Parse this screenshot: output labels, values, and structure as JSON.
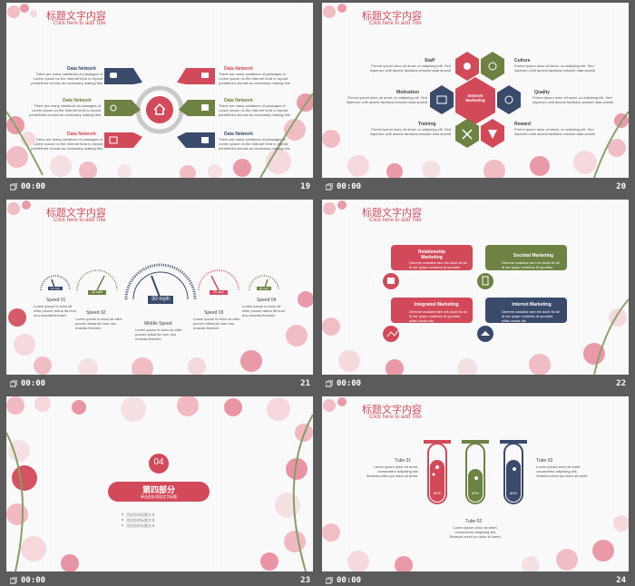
{
  "colors": {
    "red": "#d24a5a",
    "green": "#6d8243",
    "navy": "#3a4a6b",
    "gray": "#c9c9c9",
    "flower": "#e98fa0"
  },
  "slide_title": "标题文字内容",
  "slide_subtitle": "Click here to add Title",
  "time": "00:00",
  "lorem_short": "There are many variations of passages of Lorem Ipsum on the Internet tend to repeat predefined chunks as necessary making this",
  "lorem_pos": "Porem ipsum dolor sit amet, co adipising elit. Sed imperum velit aecest facilisea nesseet data ancedi",
  "lorem_speed": "Lorem ipsum is dolor sit ellier povoer adiua ita num duo enanda finemen",
  "lorem_box": "Demme usstalce tam eis docit tis sit di ise quipo nordidos di opumbe sillist vusda dis",
  "lorem_tube": "Lorem ipsum dolor sit amet, consectetur adipising elis SedeimLorem ips dolor sit amet.",
  "slides": [
    {
      "page": "19",
      "items": [
        "Data Network",
        "Data Network",
        "Data Network",
        "Data Network",
        "Data Network",
        "Data Network"
      ]
    },
    {
      "page": "20",
      "center": "Internet Marketing",
      "items": [
        "Staff",
        "Culture",
        "Motivation",
        "Quality",
        "Training",
        "Reward"
      ]
    },
    {
      "page": "21",
      "speeds": [
        "Speed 01",
        "Speed 02",
        "Middle Speed",
        "Speed 03",
        "Speed 04"
      ],
      "center_value": "30 mph",
      "small_values": [
        "10 mph",
        "20 mph",
        "20 mph",
        "20 mph"
      ]
    },
    {
      "page": "22",
      "boxes": [
        "Relationship Marketing",
        "Societal Marketing",
        "Integrated Marketing",
        "Internet Marketing"
      ]
    },
    {
      "page": "23",
      "number": "04",
      "heading": "第四部分",
      "sub": "单击此处添加文字标题",
      "bullets": [
        "添加您的标题文本",
        "添加您的标题文本",
        "添加您的标题文本"
      ]
    },
    {
      "page": "24",
      "tubes": [
        "Tube 01",
        "Tube 02",
        "Tube 03"
      ],
      "tube_pct": [
        "80%",
        "60%",
        "80%"
      ]
    }
  ]
}
